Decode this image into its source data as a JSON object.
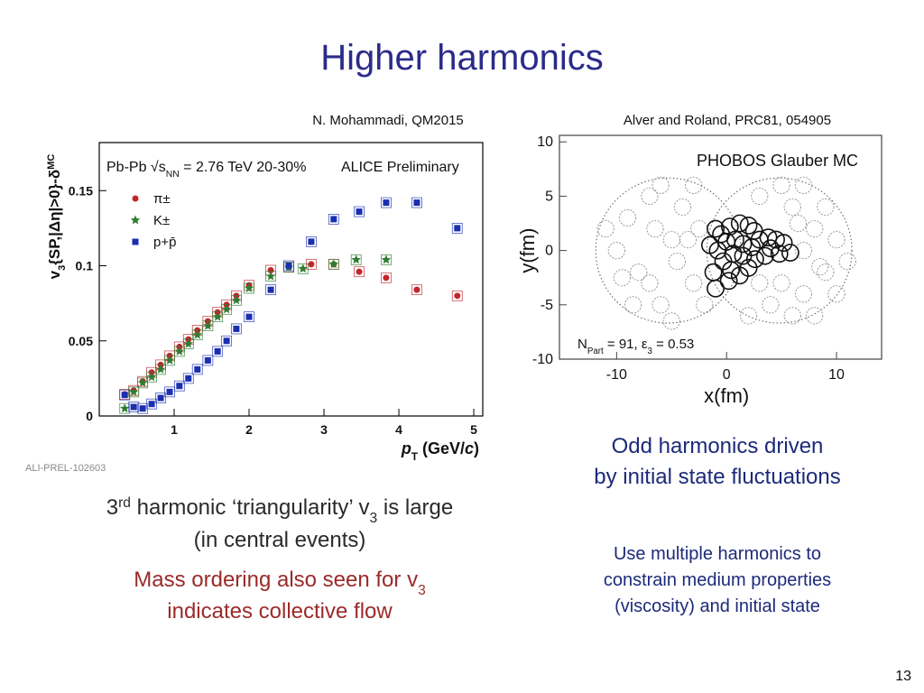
{
  "slide": {
    "title": "Higher harmonics",
    "source_left": "N. Mohammadi, QM2015",
    "source_right": "Alver and Roland, PRC81, 054905",
    "page": "13",
    "left_text": {
      "color": "#2a2a2a",
      "lines": [
        [
          {
            "text": "3"
          },
          {
            "text": "rd",
            "style": "sup"
          },
          {
            "text": " harmonic ‘triangularity’ v"
          },
          {
            "text": "3",
            "style": "sub"
          },
          {
            "text": " is large"
          }
        ],
        [
          {
            "text": "(in central events)"
          }
        ]
      ]
    },
    "left_text2": {
      "color": "#9b2a2a",
      "lines": [
        [
          {
            "text": "Mass ordering also seen for v"
          },
          {
            "text": "3",
            "style": "sub"
          }
        ],
        [
          {
            "text": "indicates collective flow"
          }
        ]
      ]
    },
    "right_text": {
      "color": "#1c2a7a",
      "lines": [
        [
          {
            "text": "Odd harmonics driven"
          }
        ],
        [
          {
            "text": "by initial state fluctuations"
          }
        ]
      ]
    },
    "right_text2": {
      "color": "#1c2a7a",
      "lines": [
        [
          {
            "text": "Use multiple harmonics to"
          }
        ],
        [
          {
            "text": "constrain medium properties"
          }
        ],
        [
          {
            "text": "(viscosity) and initial state"
          }
        ]
      ]
    }
  },
  "chart_data": [
    {
      "type": "scatter",
      "xlim": [
        0,
        5.12
      ],
      "ylim": [
        0,
        0.182
      ],
      "xticks": [
        1,
        2,
        3,
        4,
        5
      ],
      "yticks": [
        0,
        0.05,
        0.1,
        0.15
      ],
      "xlabel": [
        {
          "text": "p",
          "style": "bolditalic"
        },
        {
          "text": "T",
          "style": "sub"
        },
        {
          "text": " (GeV/"
        },
        {
          "text": "c",
          "style": "bolditalic"
        },
        {
          "text": ")"
        }
      ],
      "ylabel": [
        {
          "text": "v"
        },
        {
          "text": "3",
          "style": "sub"
        },
        {
          "text": "{SP,|Δη|>0}-δ"
        },
        {
          "text": "MC",
          "style": "sup"
        }
      ],
      "annotations": [
        [
          {
            "text": "Pb-Pb  √"
          },
          {
            "text": "s"
          },
          {
            "text": "NN",
            "style": "sub"
          },
          {
            "text": " = 2.76 TeV 20-30%"
          }
        ],
        [
          {
            "text": "ALICE Preliminary"
          }
        ]
      ],
      "watermark": "ALI-PREL-102603",
      "legend": "upper left",
      "series": [
        {
          "name": "π±",
          "color": "#c0262a",
          "marker": "circle",
          "x": [
            0.34,
            0.46,
            0.58,
            0.7,
            0.82,
            0.94,
            1.07,
            1.19,
            1.31,
            1.45,
            1.58,
            1.7,
            1.83,
            2.0,
            2.29,
            2.53,
            2.83,
            3.13,
            3.47,
            3.83,
            4.24,
            4.78
          ],
          "values": [
            0.0145,
            0.017,
            0.023,
            0.029,
            0.034,
            0.04,
            0.046,
            0.051,
            0.057,
            0.063,
            0.069,
            0.074,
            0.08,
            0.087,
            0.097,
            0.099,
            0.101,
            0.101,
            0.096,
            0.092,
            0.084,
            0.08
          ]
        },
        {
          "name": "K±",
          "color": "#2e7d32",
          "marker": "star",
          "x": [
            0.34,
            0.46,
            0.58,
            0.7,
            0.82,
            0.94,
            1.07,
            1.19,
            1.31,
            1.45,
            1.58,
            1.7,
            1.83,
            2.0,
            2.29,
            2.53,
            2.72,
            3.13,
            3.43,
            3.83
          ],
          "values": [
            0.005,
            0.016,
            0.022,
            0.026,
            0.031,
            0.037,
            0.043,
            0.048,
            0.054,
            0.06,
            0.066,
            0.071,
            0.077,
            0.085,
            0.093,
            0.099,
            0.098,
            0.101,
            0.104,
            0.104
          ]
        },
        {
          "name": "p+p̄",
          "color": "#1a2fb0",
          "marker": "square",
          "x": [
            0.34,
            0.46,
            0.58,
            0.7,
            0.82,
            0.94,
            1.07,
            1.19,
            1.31,
            1.45,
            1.58,
            1.7,
            1.83,
            2.0,
            2.29,
            2.53,
            2.83,
            3.13,
            3.47,
            3.83,
            4.24,
            4.78
          ],
          "values": [
            0.014,
            0.006,
            0.005,
            0.008,
            0.012,
            0.016,
            0.02,
            0.025,
            0.031,
            0.037,
            0.043,
            0.05,
            0.058,
            0.066,
            0.084,
            0.1,
            0.116,
            0.131,
            0.136,
            0.142,
            0.142,
            0.125
          ]
        }
      ]
    },
    {
      "type": "scatter",
      "xlim": [
        -15.2,
        14.1
      ],
      "ylim": [
        -10,
        10.6
      ],
      "xticks": [
        -10,
        0,
        10
      ],
      "yticks": [
        -10,
        -5,
        0,
        5,
        10
      ],
      "xlabel": [
        {
          "text": "x(fm)"
        }
      ],
      "ylabel": [
        {
          "text": "y(fm)"
        }
      ],
      "annotations": [
        [
          {
            "text": "PHOBOS Glauber MC"
          }
        ],
        [
          {
            "text": "N"
          },
          {
            "text": "Part",
            "style": "sub"
          },
          {
            "text": " = 91,  ε"
          },
          {
            "text": "3",
            "style": "sub"
          },
          {
            "text": " = 0.53"
          }
        ]
      ],
      "outlines": {
        "x": [
          -5.3,
          4.8
        ],
        "y": [
          0,
          0
        ],
        "r": [
          6.6,
          6.6
        ]
      },
      "series": [
        {
          "color": "#999999",
          "marker": "ring",
          "dash": true,
          "size": 0.75,
          "x": [
            -9,
            -8,
            -7,
            -6,
            -5,
            -4,
            -3,
            -10,
            -8.5,
            -6.5,
            -4.5,
            -3,
            -2.5,
            -5,
            -7,
            -2,
            -11,
            -9.5,
            -6,
            -3.5,
            6,
            8,
            9,
            7,
            10,
            5,
            3,
            7,
            9,
            11,
            6,
            4,
            8,
            10,
            2,
            3,
            7,
            8.5,
            6.5,
            5
          ],
          "values": [
            3,
            -2,
            5,
            -5,
            1,
            4,
            -3,
            0,
            -5,
            2,
            -1,
            6,
            2,
            -6.5,
            -3,
            -5,
            2,
            -2.5,
            6,
            1,
            4,
            2,
            -2,
            -4,
            1,
            6,
            5,
            6,
            4,
            -1,
            -6,
            -5,
            -6,
            -4,
            -6,
            -3,
            0,
            -1.5,
            2.5,
            -3
          ]
        },
        {
          "color": "#111111",
          "marker": "ring",
          "dash": false,
          "size": 0.75,
          "x": [
            -1,
            -0.5,
            0.3,
            1.2,
            2,
            2.5,
            -1.5,
            -0.8,
            0,
            0.8,
            1.5,
            2.3,
            3,
            3.8,
            4.5,
            5.2,
            4,
            4.8,
            3.5,
            2.6,
            1.5,
            0.6,
            -0.3,
            0.4,
            1.2,
            -1.2,
            -1,
            0.2,
            2,
            5.8
          ],
          "values": [
            2,
            1.5,
            2.2,
            2.5,
            2.3,
            1.8,
            0.5,
            0,
            0.8,
            1,
            0.6,
            0.3,
            1,
            1.2,
            1,
            0.7,
            0.2,
            -0.3,
            -0.5,
            -0.8,
            -0.5,
            -0.3,
            -1,
            -1.8,
            -2.3,
            -2,
            -3.5,
            -2.8,
            -1.6,
            -0.2
          ]
        }
      ]
    }
  ]
}
